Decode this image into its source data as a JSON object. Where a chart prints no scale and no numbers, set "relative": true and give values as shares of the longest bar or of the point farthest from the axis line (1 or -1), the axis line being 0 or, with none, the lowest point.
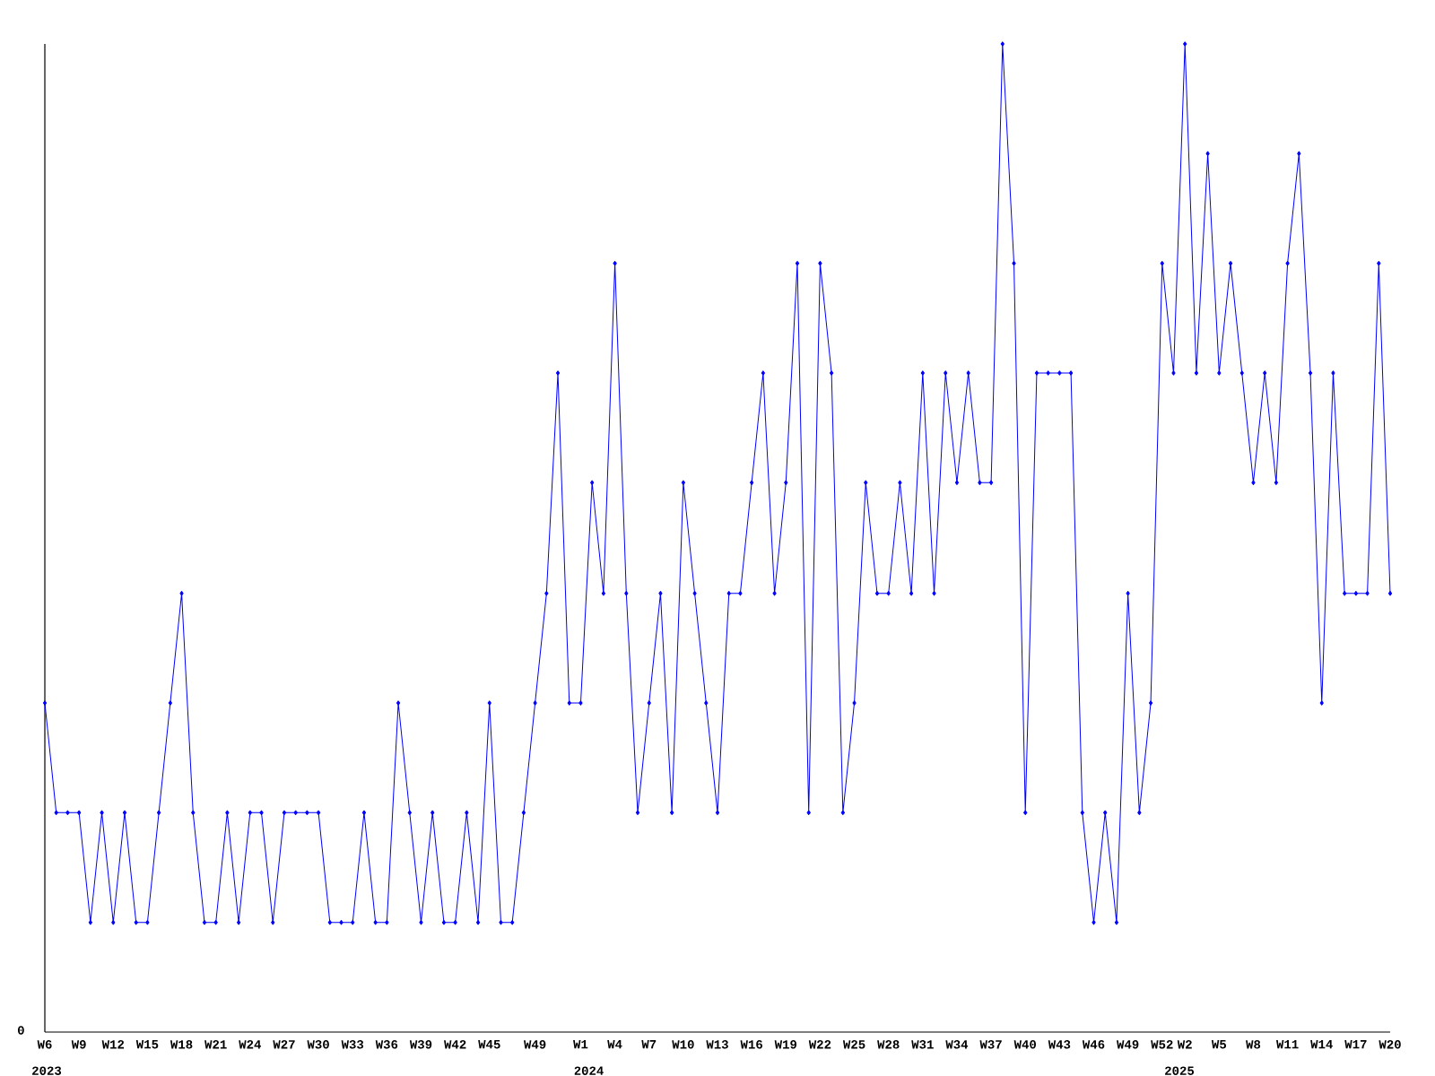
{
  "chart_data": {
    "type": "line",
    "relative": true,
    "color": "#0000ff",
    "marker": "diamond",
    "line_style": "solid",
    "categories": [
      "W6",
      null,
      null,
      "W9",
      null,
      null,
      "W12",
      null,
      null,
      "W15",
      null,
      null,
      "W18",
      null,
      null,
      "W21",
      null,
      null,
      "W24",
      null,
      null,
      "W27",
      null,
      null,
      "W30",
      null,
      null,
      "W33",
      null,
      null,
      "W36",
      null,
      null,
      "W39",
      null,
      null,
      "W42",
      null,
      null,
      "W45",
      null,
      null,
      null,
      "W49",
      null,
      null,
      null,
      "W1",
      null,
      null,
      "W4",
      null,
      null,
      "W7",
      null,
      null,
      "W10",
      null,
      null,
      "W13",
      null,
      null,
      "W16",
      null,
      null,
      "W19",
      null,
      null,
      "W22",
      null,
      null,
      "W25",
      null,
      null,
      "W28",
      null,
      null,
      "W31",
      null,
      null,
      "W34",
      null,
      null,
      "W37",
      null,
      null,
      "W40",
      null,
      null,
      "W43",
      null,
      null,
      "W46",
      null,
      null,
      "W49",
      null,
      null,
      "W52",
      null,
      "W2",
      null,
      null,
      "W5",
      null,
      null,
      "W8",
      null,
      null,
      "W11",
      null,
      null,
      "W14",
      null,
      null,
      "W17",
      null,
      null,
      "W20"
    ],
    "values": [
      0.333,
      0.222,
      0.222,
      0.222,
      0.111,
      0.222,
      0.111,
      0.222,
      0.111,
      0.111,
      0.222,
      0.333,
      0.444,
      0.222,
      0.111,
      0.111,
      0.222,
      0.111,
      0.222,
      0.222,
      0.111,
      0.222,
      0.222,
      0.222,
      0.222,
      0.111,
      0.111,
      0.111,
      0.222,
      0.111,
      0.111,
      0.333,
      0.222,
      0.111,
      0.222,
      0.111,
      0.111,
      0.222,
      0.111,
      0.333,
      0.111,
      0.111,
      0.222,
      0.333,
      0.444,
      0.667,
      0.333,
      0.333,
      0.556,
      0.444,
      0.778,
      0.444,
      0.222,
      0.333,
      0.444,
      0.222,
      0.556,
      0.444,
      0.333,
      0.222,
      0.444,
      0.444,
      0.556,
      0.667,
      0.444,
      0.556,
      0.778,
      0.222,
      0.778,
      0.667,
      0.222,
      0.333,
      0.556,
      0.444,
      0.444,
      0.556,
      0.444,
      0.667,
      0.444,
      0.667,
      0.556,
      0.667,
      0.556,
      0.556,
      1,
      0.778,
      0.222,
      0.667,
      0.667,
      0.667,
      0.667,
      0.222,
      0.111,
      0.222,
      0.111,
      0.444,
      0.222,
      0.333,
      0.778,
      0.667,
      1,
      0.667,
      0.889,
      0.667,
      0.778,
      0.667,
      0.556,
      0.667,
      0.556,
      0.778,
      0.889,
      0.667,
      0.333,
      0.667,
      0.444,
      0.444,
      0.444,
      0.778,
      0.444
    ],
    "annotations": [
      "0",
      "2023",
      "2024",
      "2025"
    ]
  }
}
